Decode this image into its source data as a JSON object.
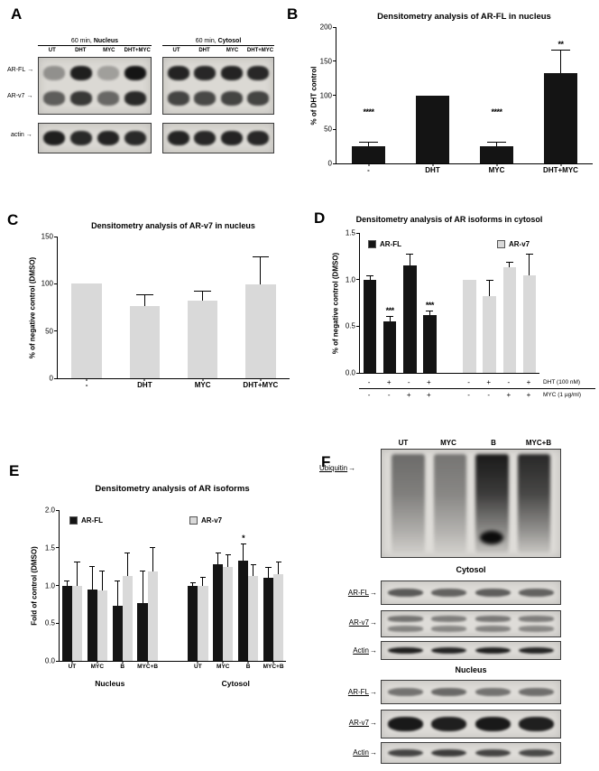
{
  "page": {
    "background": "#ffffff"
  },
  "panels": {
    "A": {
      "label": "A",
      "groups": [
        {
          "prefix": "60 min, ",
          "bold": "Nucleus"
        },
        {
          "prefix": "60 min, ",
          "bold": "Cytosol"
        }
      ],
      "lane_labels": [
        "UT",
        "DHT",
        "MYC",
        "DHT+MYC"
      ],
      "row_labels": [
        "AR-FL",
        "AR-v7",
        "actin"
      ],
      "arrow": "→",
      "blots": [
        {
          "rows": [
            {
              "bands": [
                0.35,
                0.9,
                0.28,
                0.95
              ]
            },
            {
              "bands": [
                0.6,
                0.78,
                0.55,
                0.85
              ]
            }
          ]
        },
        {
          "rows": [
            {
              "h": "62%",
              "bands": [
                0.9,
                0.85,
                0.88,
                0.85
              ]
            }
          ]
        },
        {
          "rows": [
            {
              "bands": [
                0.88,
                0.86,
                0.88,
                0.86
              ]
            },
            {
              "bands": [
                0.72,
                0.7,
                0.72,
                0.72
              ]
            }
          ]
        },
        {
          "rows": [
            {
              "h": "62%",
              "bands": [
                0.88,
                0.86,
                0.88,
                0.86
              ]
            }
          ]
        }
      ]
    },
    "B": {
      "label": "B"
    },
    "C": {
      "label": "C"
    },
    "D": {
      "label": "D"
    },
    "E": {
      "label": "E"
    },
    "F": {
      "label": "F",
      "lane_labels": [
        "UT",
        "MYC",
        "B",
        "MYC+B"
      ],
      "ubiquitin_label": "Ubiquitin",
      "cytosol_title": "Cytosol",
      "nucleus_title": "Nucleus",
      "cytosol_rows": [
        "AR-FL",
        "AR-v7",
        "Actin"
      ],
      "nucleus_rows": [
        "AR-FL",
        "AR-v7",
        "Actin"
      ],
      "arrow": "→",
      "ubiquitin_blot": {
        "type": "smear",
        "lanes": [
          0.55,
          0.5,
          0.95,
          0.88
        ],
        "blob_lane": 2
      },
      "cytosol_blots": [
        {
          "rows": [
            {
              "h": "48%",
              "bands": [
                0.62,
                0.58,
                0.6,
                0.58
              ]
            }
          ]
        },
        {
          "rows": [
            {
              "h": "55%",
              "bands": [
                0.5,
                0.45,
                0.48,
                0.45
              ]
            },
            {
              "h": "55%",
              "bands": [
                0.42,
                0.4,
                0.42,
                0.4
              ]
            }
          ]
        },
        {
          "rows": [
            {
              "h": "60%",
              "bands": [
                0.9,
                0.88,
                0.9,
                0.88
              ]
            }
          ]
        }
      ],
      "nucleus_blots": [
        {
          "rows": [
            {
              "h": "48%",
              "bands": [
                0.5,
                0.55,
                0.5,
                0.52
              ]
            }
          ]
        },
        {
          "rows": [
            {
              "h": "66%",
              "bands": [
                0.93,
                0.9,
                0.93,
                0.9
              ]
            }
          ]
        },
        {
          "rows": [
            {
              "h": "55%",
              "bands": [
                0.72,
                0.76,
                0.72,
                0.7
              ]
            }
          ]
        }
      ]
    }
  },
  "chart_data": [
    {
      "id": "B",
      "type": "bar",
      "title": "Densitometry analysis of AR-FL in nucleus",
      "ylabel": "% of DHT control",
      "ylim": [
        0,
        200
      ],
      "yticks": [
        "0",
        "50",
        "100",
        "150",
        "200"
      ],
      "categories": [
        "-",
        "DHT",
        "MYC",
        "DHT+MYC"
      ],
      "values": [
        25,
        100,
        25,
        133
      ],
      "errors": [
        5,
        0,
        5,
        32
      ],
      "annotations": [
        "****",
        "",
        "****",
        "**"
      ],
      "bar_color": "#141414",
      "ann_min": 66,
      "grid": false,
      "legend_position": "none"
    },
    {
      "id": "C",
      "type": "bar",
      "title": "Densitometry analysis of AR-v7 in nucleus",
      "ylabel": "% of negative control (DMSO)",
      "ylim": [
        0,
        150
      ],
      "yticks": [
        "0",
        "50",
        "100",
        "150"
      ],
      "categories": [
        "-",
        "DHT",
        "MYC",
        "DHT+MYC"
      ],
      "values": [
        100,
        76,
        82,
        99
      ],
      "errors": [
        0,
        12,
        10,
        29
      ],
      "annotations": [
        "",
        "",
        "",
        ""
      ],
      "bar_color": "#d9d9d9",
      "grid": false,
      "legend_position": "none"
    },
    {
      "id": "D",
      "type": "bar",
      "layout": "blocks",
      "title": "Densitometry analysis of AR isoforms in cytosol",
      "ylabel": "% of negative control (DMSO)",
      "ylim": [
        0,
        1.5
      ],
      "yticks": [
        "0.0",
        "0.5",
        "1.0",
        "1.5"
      ],
      "series": [
        {
          "name": "AR-FL",
          "color": "#141414",
          "values": [
            1.0,
            0.55,
            1.15,
            0.62
          ],
          "errors": [
            0.04,
            0.05,
            0.12,
            0.04
          ],
          "annotations": [
            "",
            "***",
            "",
            "***"
          ]
        },
        {
          "name": "AR-v7",
          "color": "#d9d9d9",
          "values": [
            1.0,
            0.82,
            1.13,
            1.05
          ],
          "errors": [
            0,
            0.17,
            0.05,
            0.22
          ],
          "annotations": [
            "",
            "",
            "",
            ""
          ]
        }
      ],
      "x_rows": [
        {
          "label": "DHT (100 nM)",
          "signs": [
            "-",
            "+",
            "-",
            "+",
            "-",
            "+",
            "-",
            "+"
          ]
        },
        {
          "label": "MYC (1 µg/ml)",
          "signs": [
            "-",
            "-",
            "+",
            "+",
            "-",
            "-",
            "+",
            "+"
          ]
        }
      ],
      "grid": false,
      "legend_position": "inside-top"
    },
    {
      "id": "E",
      "type": "bar",
      "layout": "pairs",
      "title": "Densitometry analysis of AR isoforms",
      "ylabel": "Fold of control (DMSO)",
      "ylim": [
        0,
        2.0
      ],
      "yticks": [
        "0.0",
        "0.5",
        "1.0",
        "1.5",
        "2.0"
      ],
      "categories": [
        "UT",
        "MYC",
        "B",
        "MYC+B",
        "UT",
        "MYC",
        "B",
        "MYC+B"
      ],
      "group_labels": [
        "Nucleus",
        "Cytosol"
      ],
      "series": [
        {
          "name": "AR-FL",
          "color": "#141414",
          "values": [
            1.0,
            0.95,
            0.73,
            0.77,
            1.0,
            1.28,
            1.33,
            1.1
          ],
          "errors": [
            0.05,
            0.3,
            0.33,
            0.42,
            0.03,
            0.15,
            0.22,
            0.13
          ],
          "annotations": [
            "",
            "",
            "",
            "",
            "",
            "",
            "*",
            ""
          ]
        },
        {
          "name": "AR-v7",
          "color": "#d9d9d9",
          "values": [
            1.0,
            0.93,
            1.12,
            1.18,
            1.0,
            1.25,
            1.12,
            1.15
          ],
          "errors": [
            0.3,
            0.25,
            0.3,
            0.32,
            0.1,
            0.15,
            0.15,
            0.15
          ],
          "annotations": [
            "",
            "",
            "",
            "",
            "",
            "",
            "",
            ""
          ]
        }
      ],
      "grid": false,
      "legend_position": "inside-top"
    }
  ]
}
